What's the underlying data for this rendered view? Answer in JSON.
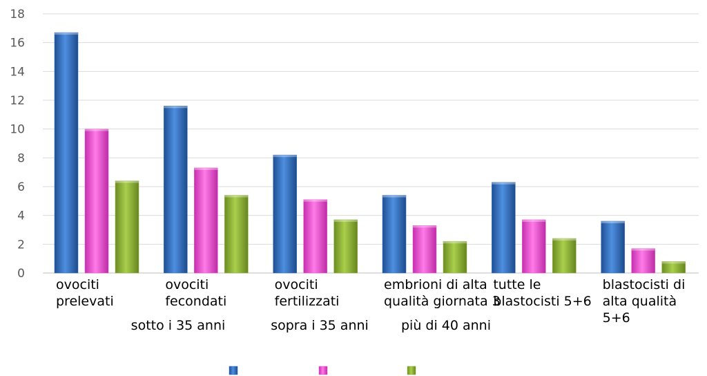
{
  "chart_data": {
    "type": "bar",
    "categories": [
      [
        "ovociti",
        "prelevati"
      ],
      [
        "ovociti",
        "fecondati"
      ],
      [
        "ovociti",
        "fertilizzati"
      ],
      [
        "embrioni di alta",
        "qualità giornata 3"
      ],
      [
        "tutte le",
        "blastocisti 5+6"
      ],
      [
        "blastocisti di",
        "alta qualità",
        "5+6"
      ]
    ],
    "series": [
      {
        "name": "sotto i 35 anni",
        "color": "#2e6fc4",
        "values": [
          16.7,
          11.6,
          8.2,
          5.4,
          6.3,
          3.6
        ]
      },
      {
        "name": "sopra i 35 anni",
        "color": "#ee4fd6",
        "values": [
          10.0,
          7.3,
          5.1,
          3.3,
          3.7,
          1.7
        ]
      },
      {
        "name": "più di 40 anni",
        "color": "#8db236",
        "values": [
          6.4,
          5.4,
          3.7,
          2.2,
          2.4,
          0.8
        ]
      }
    ],
    "yticks": [
      "0",
      "2",
      "4",
      "6",
      "8",
      "10",
      "12",
      "14",
      "16",
      "18"
    ],
    "ylim": [
      0,
      18
    ],
    "grid": true,
    "legend_position": "bottom"
  }
}
